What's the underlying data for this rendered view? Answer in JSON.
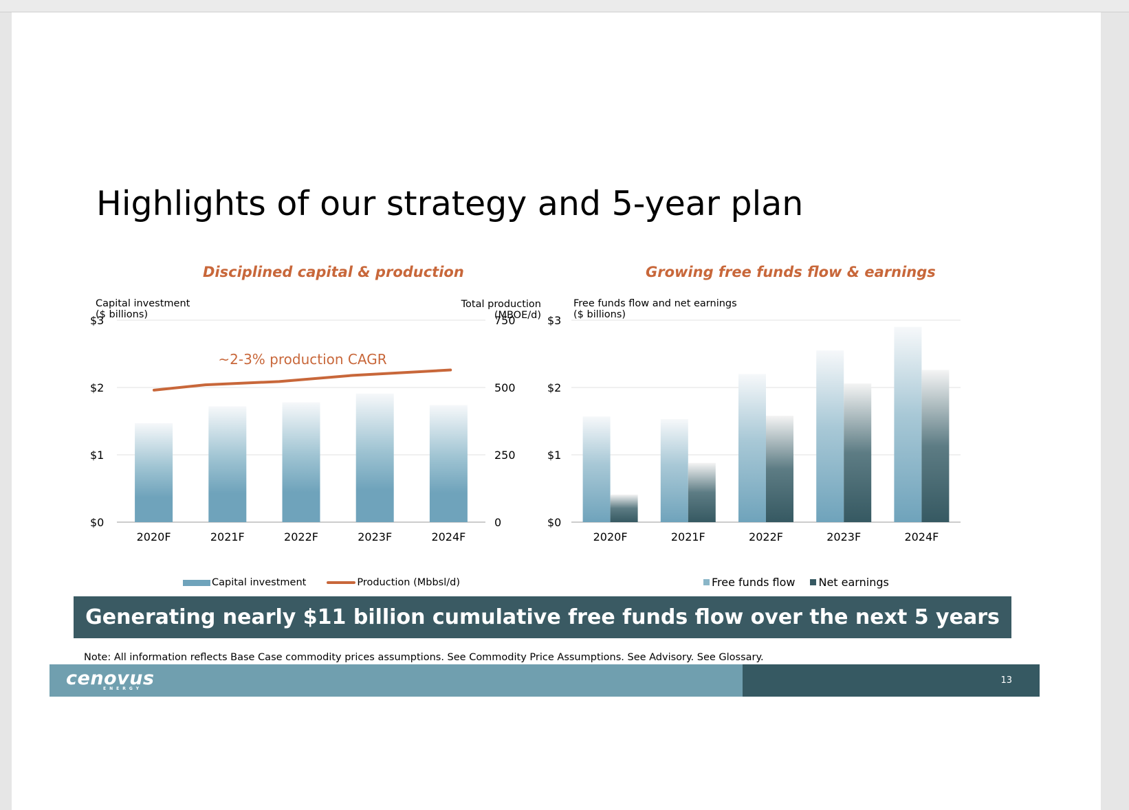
{
  "title": "Highlights of our strategy and 5-year plan",
  "left_panel": {
    "heading": "Disciplined capital & production",
    "left_axis_caption": [
      "Capital investment",
      "($ billions)"
    ],
    "right_axis_caption": [
      "Total production",
      "(MBOE/d)"
    ],
    "annotation": "~2-3% production CAGR",
    "legend": {
      "bar": "Capital investment",
      "line": "Production (Mbbsl/d)"
    }
  },
  "right_panel": {
    "heading": "Growing free funds flow & earnings",
    "axis_caption": [
      "Free funds flow and net earnings",
      "($ billions)"
    ],
    "legend": {
      "series1": "Free funds flow",
      "series2": "Net earnings"
    }
  },
  "banner": "Generating nearly $11 billion cumulative free funds flow over the next 5 years",
  "note": "Note: All information reflects Base Case commodity prices assumptions. See Commodity Price Assumptions. See Advisory. See Glossary.",
  "footer": {
    "logo": "cenovus",
    "logo_sub": "ENERGY",
    "page_number": "13"
  },
  "colors": {
    "accent": "#c8673a",
    "bar_light": "#6fa3bb",
    "bar_dark": "#365962",
    "banner": "#3a5a63"
  },
  "chart_data": [
    {
      "type": "bar",
      "categories": [
        "2020F",
        "2021F",
        "2022F",
        "2023F",
        "2024F"
      ],
      "series": [
        {
          "name": "Capital investment",
          "axis": "left",
          "values": [
            1.47,
            1.72,
            1.78,
            1.91,
            1.74
          ]
        },
        {
          "name": "Production (Mbbsl/d)",
          "axis": "right",
          "kind": "line",
          "values": [
            490,
            510,
            522,
            545,
            565
          ]
        }
      ],
      "ylim": [
        0,
        3
      ],
      "yticks": [
        "$0",
        "$1",
        "$2",
        "$3"
      ],
      "y2lim": [
        0,
        750
      ],
      "y2ticks": [
        "0",
        "250",
        "500",
        "750"
      ],
      "grid": true,
      "legend_position": "bottom"
    },
    {
      "type": "bar",
      "categories": [
        "2020F",
        "2021F",
        "2022F",
        "2023F",
        "2024F"
      ],
      "series": [
        {
          "name": "Free funds flow",
          "values": [
            1.57,
            1.53,
            2.2,
            2.55,
            2.9
          ]
        },
        {
          "name": "Net earnings",
          "values": [
            0.41,
            0.88,
            1.58,
            2.06,
            2.26
          ]
        }
      ],
      "ylim": [
        0,
        3
      ],
      "yticks": [
        "$0",
        "$1",
        "$2",
        "$3"
      ],
      "grid": true,
      "legend_position": "bottom"
    }
  ]
}
